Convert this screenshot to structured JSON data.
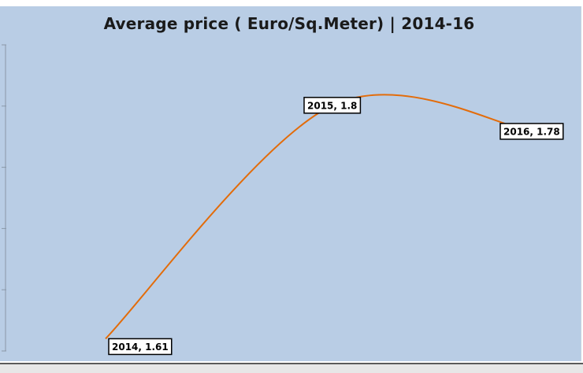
{
  "chart_data": {
    "type": "line",
    "title": "Average price ( Euro/Sq.Meter) | 2014-16",
    "xlabel": "",
    "ylabel": "",
    "x": [
      2014,
      2015,
      2016
    ],
    "series": [
      {
        "values": [
          1.61,
          1.8,
          1.78
        ],
        "color": "#e36c0a",
        "smooth": true
      }
    ],
    "data_labels": [
      "2014, 1.61",
      "2015, 1.8",
      "2016, 1.78"
    ],
    "ylim": [
      1.6,
      1.85
    ],
    "y_tick_values": [
      1.6,
      1.65,
      1.7,
      1.75,
      1.8,
      1.85
    ],
    "y_tick_labels_visible": false,
    "grid": false,
    "legend": "none",
    "background_color": "#b9cde5"
  }
}
